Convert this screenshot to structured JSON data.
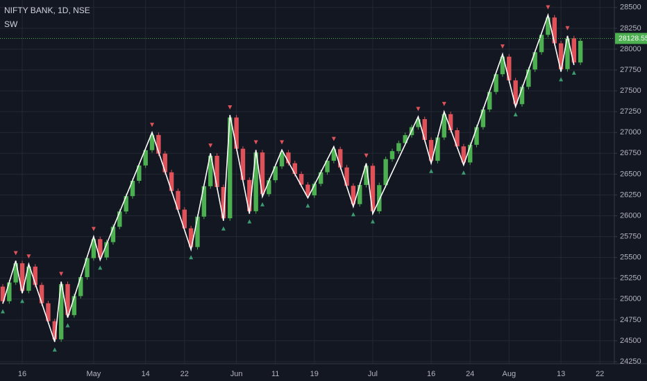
{
  "chart_data": {
    "type": "candlestick",
    "title": "NIFTY BANK, 1D, NSE",
    "categories": [
      null,
      null,
      null,
      "16",
      null,
      null,
      null,
      null,
      null,
      null,
      null,
      null,
      null,
      null,
      "May",
      null,
      null,
      null,
      null,
      null,
      null,
      null,
      "14",
      null,
      null,
      null,
      null,
      null,
      "22",
      null,
      null,
      null,
      null,
      null,
      null,
      null,
      "Jun",
      null,
      null,
      null,
      null,
      null,
      "11",
      null,
      null,
      null,
      null,
      null,
      "19",
      null,
      null,
      null,
      null,
      null,
      null,
      null,
      null,
      "Jul",
      null,
      null,
      null,
      null,
      null,
      null,
      null,
      null,
      "16",
      null,
      null,
      null,
      null,
      null,
      "24",
      null,
      null,
      null,
      null,
      null,
      "Aug",
      null,
      null,
      null,
      null,
      null,
      null,
      null,
      "13",
      null,
      null,
      null,
      null,
      null,
      "22",
      null
    ],
    "open": [
      25150,
      24975,
      25200,
      25430,
      25100,
      25390,
      25170,
      24950,
      24735,
      24517,
      25180,
      24808,
      25036,
      25264,
      25492,
      25720,
      25500,
      25684,
      25868,
      26052,
      26236,
      26420,
      26604,
      26788,
      26970,
      26746,
      26522,
      26298,
      26074,
      25850,
      25625,
      25990,
      26355,
      26720,
      26345,
      25970,
      27180,
      26805,
      26430,
      26055,
      26760,
      26260,
      26427,
      26593,
      26760,
      26631,
      26502,
      26374,
      26245,
      26384,
      26523,
      26661,
      26800,
      26580,
      26360,
      26140,
      26370,
      26600,
      26055,
      26368,
      26680,
      26776,
      26872,
      26968,
      27064,
      27160,
      26910,
      26660,
      26940,
      27220,
      27027,
      26833,
      26640,
      26852,
      27064,
      27276,
      27487,
      27699,
      27910,
      27625,
      27340,
      27548,
      27756,
      27964,
      28172,
      28380,
      28070,
      27760,
      28130,
      27840,
      null,
      null,
      null,
      null
    ],
    "high": [
      25180,
      25230,
      25460,
      25460,
      25420,
      25420,
      25200,
      24980,
      24765,
      25210,
      25210,
      25066,
      25294,
      25522,
      25750,
      25750,
      25714,
      25898,
      26082,
      26266,
      26450,
      26634,
      26818,
      27000,
      27000,
      26776,
      26552,
      26328,
      26104,
      25880,
      26020,
      26385,
      26750,
      26750,
      26375,
      27210,
      27210,
      26835,
      26460,
      26790,
      26790,
      26457,
      26623,
      26790,
      26790,
      26661,
      26532,
      26404,
      26414,
      26553,
      26691,
      26830,
      26830,
      26610,
      26390,
      26400,
      26630,
      26630,
      26398,
      26710,
      26806,
      26902,
      26998,
      27094,
      27190,
      27190,
      26940,
      26970,
      27250,
      27250,
      27057,
      26863,
      26882,
      27094,
      27306,
      27517,
      27729,
      27940,
      27940,
      27655,
      27578,
      27786,
      27994,
      28202,
      28410,
      28410,
      28100,
      28160,
      28160,
      28130,
      null,
      null,
      null,
      null
    ],
    "low": [
      24945,
      24945,
      25170,
      25070,
      25070,
      25140,
      24920,
      24705,
      24487,
      24487,
      24778,
      24778,
      25006,
      25234,
      25462,
      25470,
      25470,
      25654,
      25838,
      26022,
      26206,
      26390,
      26574,
      26758,
      26716,
      26492,
      26268,
      26044,
      25820,
      25595,
      25595,
      25960,
      26325,
      26315,
      25940,
      25940,
      26775,
      26400,
      26025,
      26025,
      26230,
      26230,
      26397,
      26563,
      26601,
      26472,
      26344,
      26215,
      26215,
      26354,
      26493,
      26631,
      26550,
      26330,
      26110,
      26110,
      26340,
      26025,
      26025,
      26338,
      26650,
      26746,
      26842,
      26938,
      27034,
      26880,
      26630,
      26630,
      26910,
      26997,
      26803,
      26610,
      26610,
      26822,
      27034,
      27246,
      27457,
      27669,
      27595,
      27310,
      27310,
      27518,
      27726,
      27934,
      28142,
      28040,
      27730,
      27730,
      27810,
      27810,
      null,
      null,
      null,
      null
    ],
    "close": [
      24975,
      25200,
      25430,
      25100,
      25390,
      25170,
      24950,
      24735,
      24517,
      25180,
      24808,
      25036,
      25264,
      25492,
      25720,
      25500,
      25684,
      25868,
      26052,
      26236,
      26420,
      26604,
      26788,
      26970,
      26746,
      26522,
      26298,
      26074,
      25850,
      25625,
      25990,
      26355,
      26720,
      26345,
      25970,
      27180,
      26805,
      26430,
      26055,
      26760,
      26260,
      26427,
      26593,
      26760,
      26631,
      26502,
      26374,
      26245,
      26384,
      26523,
      26661,
      26800,
      26580,
      26360,
      26140,
      26370,
      26600,
      26055,
      26368,
      26680,
      26776,
      26872,
      26968,
      27064,
      27160,
      26910,
      26660,
      26940,
      27220,
      27027,
      26833,
      26640,
      26852,
      27064,
      27276,
      27487,
      27699,
      27910,
      27625,
      27340,
      27548,
      27756,
      27964,
      28172,
      28380,
      28070,
      27760,
      28130,
      27840,
      28100,
      null,
      null,
      null,
      null
    ],
    "up_color": "#4caf50",
    "down_color": "#e0525a",
    "zigzag": {
      "name": "SW",
      "color": "#ffffff",
      "x": [
        0,
        2,
        3,
        4,
        8,
        9,
        10,
        14,
        15,
        23,
        29,
        32,
        34,
        35,
        38,
        39,
        40,
        43,
        47,
        51,
        54,
        56,
        57,
        64,
        66,
        68,
        71,
        77,
        79,
        84,
        86,
        87,
        88
      ],
      "values": [
        24945,
        25460,
        25070,
        25420,
        24487,
        25210,
        24778,
        25750,
        25470,
        27000,
        25595,
        26750,
        25940,
        27210,
        26025,
        26790,
        26230,
        26790,
        26215,
        26830,
        26110,
        26630,
        26025,
        27190,
        26630,
        27250,
        26610,
        27940,
        27310,
        28410,
        27730,
        28160,
        27810
      ]
    },
    "last_price": 28128.55,
    "ylim": [
      24225,
      28590
    ],
    "yticks": [
      24250,
      24500,
      24750,
      25000,
      25250,
      25500,
      25750,
      26000,
      26250,
      26500,
      26750,
      27000,
      27250,
      27500,
      27750,
      28000,
      28250,
      28500
    ],
    "grid": true
  }
}
